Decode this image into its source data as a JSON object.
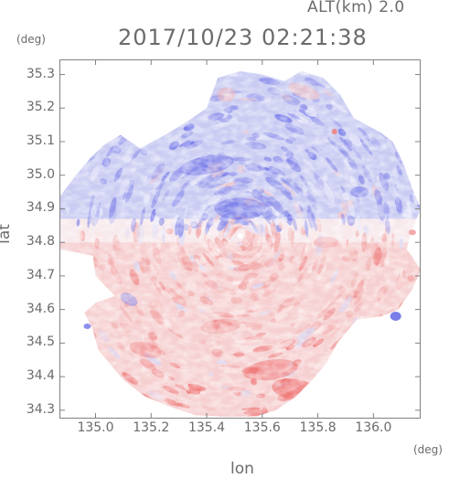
{
  "header": {
    "alt_label": "ALT(km) 2.0",
    "timestamp": "2017/10/23 02:21:38"
  },
  "axes": {
    "y_unit": "(deg)",
    "x_unit": "(deg)",
    "y_title": "lat",
    "x_title": "lon",
    "y_ticks": [
      "35.3",
      "35.2",
      "35.1",
      "35.0",
      "34.9",
      "34.8",
      "34.7",
      "34.6",
      "34.5",
      "34.4",
      "34.3"
    ],
    "x_ticks": [
      "135.0",
      "135.2",
      "135.4",
      "135.6",
      "135.8",
      "136.0"
    ]
  },
  "map": {
    "lon_range": [
      134.87,
      136.17
    ],
    "lat_range": [
      34.275,
      35.345
    ],
    "center": [
      135.52,
      34.82
    ],
    "colors": {
      "positive": "#ef4a4a",
      "negative": "#5a5ef0",
      "near_zero_pos": "#fbd9d6",
      "near_zero_neg": "#dcdcf7",
      "frame": "#808080"
    }
  }
}
